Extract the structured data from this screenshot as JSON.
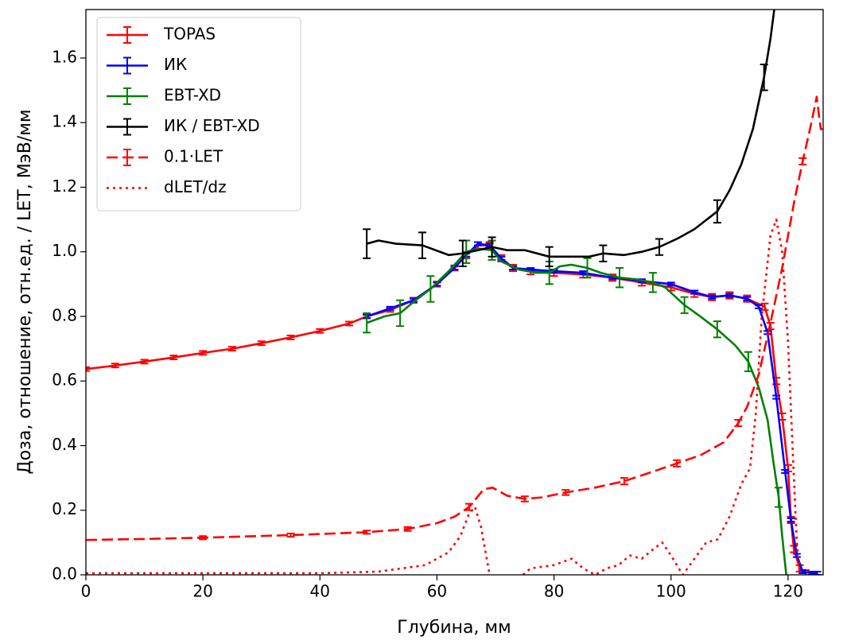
{
  "chart_data": {
    "type": "line",
    "xlabel": "Глубина, мм",
    "ylabel": "Доза, отношение, отн.ед. / LET, МэВ/мм",
    "xlim": [
      0,
      126
    ],
    "ylim": [
      0,
      1.75
    ],
    "xticks": [
      0,
      20,
      40,
      60,
      80,
      100,
      120
    ],
    "yticks": [
      {
        "value": 0,
        "label": "0.0"
      },
      0.2,
      0.4,
      0.6,
      0.8,
      {
        "value": 1,
        "label": "1.0"
      },
      1.2,
      1.4,
      1.6
    ],
    "legend": "upper left",
    "series": [
      {
        "name": "TOPAS",
        "color": "#ff0000",
        "style": "solid",
        "x": [
          0,
          5,
          10,
          15,
          20,
          25,
          30,
          35,
          40,
          45,
          48,
          52,
          56,
          60,
          63,
          65,
          67,
          69,
          71,
          73,
          76,
          80,
          85,
          90,
          95,
          100,
          104,
          107,
          110,
          113,
          116,
          117,
          118,
          119,
          120,
          120.5,
          121,
          122,
          123
        ],
        "values": [
          0.637,
          0.648,
          0.66,
          0.673,
          0.687,
          0.7,
          0.717,
          0.735,
          0.755,
          0.778,
          0.8,
          0.82,
          0.85,
          0.9,
          0.95,
          0.99,
          1.02,
          1.02,
          0.98,
          0.95,
          0.94,
          0.935,
          0.93,
          0.92,
          0.905,
          0.89,
          0.87,
          0.86,
          0.865,
          0.855,
          0.83,
          0.77,
          0.6,
          0.49,
          0.33,
          0.17,
          0.08,
          0.02,
          0.005
        ],
        "errors": [
          0.006,
          0.006,
          0.006,
          0.006,
          0.006,
          0.006,
          0.006,
          0.006,
          0.006,
          0.006,
          0.006,
          0.006,
          0.008,
          0.008,
          0.008,
          0.01,
          0.01,
          0.01,
          0.01,
          0.01,
          0.01,
          0.01,
          0.01,
          0.01,
          0.01,
          0.01,
          0.01,
          0.01,
          0.01,
          0.01,
          0.01,
          0.01,
          0.01,
          0.01,
          0.01,
          0.01,
          0.01,
          0.01,
          0.01
        ]
      },
      {
        "name": "ИК",
        "color": "#0000ff",
        "style": "solid",
        "x": [
          48,
          52,
          56,
          60,
          63,
          65,
          67,
          69,
          71,
          73,
          76,
          80,
          85,
          90,
          95,
          100,
          104,
          107,
          110,
          113,
          115,
          116.5,
          118,
          119.5,
          120.5,
          121.5,
          122.5,
          124,
          125
        ],
        "values": [
          0.8,
          0.825,
          0.85,
          0.9,
          0.95,
          0.99,
          1.025,
          1.02,
          0.98,
          0.95,
          0.945,
          0.94,
          0.935,
          0.92,
          0.91,
          0.9,
          0.875,
          0.86,
          0.865,
          0.855,
          0.83,
          0.75,
          0.55,
          0.32,
          0.17,
          0.06,
          0.01,
          0.005,
          0.005
        ],
        "errors": [
          0.005,
          0.005,
          0.005,
          0.005,
          0.005,
          0.005,
          0.005,
          0.005,
          0.005,
          0.005,
          0.005,
          0.005,
          0.005,
          0.005,
          0.005,
          0.005,
          0.005,
          0.005,
          0.005,
          0.005,
          0.005,
          0.005,
          0.005,
          0.005,
          0.005,
          0.005,
          0.005,
          0.005,
          0.005
        ]
      },
      {
        "name": "EBT-XD",
        "color": "#008000",
        "style": "solid",
        "x": [
          48,
          51,
          53.7,
          56,
          58.9,
          62,
          65,
          67,
          69.4,
          71,
          74,
          77,
          79.2,
          81,
          83,
          85.7,
          88,
          91.2,
          94,
          96.9,
          99,
          102.3,
          105,
          107.9,
          111,
          113.2,
          115,
          116.5,
          117.5,
          118.4,
          119,
          119.7
        ],
        "values": [
          0.78,
          0.8,
          0.81,
          0.845,
          0.885,
          0.94,
          1.0,
          1.01,
          1.005,
          0.97,
          0.945,
          0.935,
          0.935,
          0.955,
          0.96,
          0.95,
          0.935,
          0.92,
          0.915,
          0.905,
          0.89,
          0.835,
          0.8,
          0.76,
          0.71,
          0.66,
          0.58,
          0.48,
          0.35,
          0.24,
          0.12,
          0.0
        ],
        "errors": [
          0.03,
          null,
          0.04,
          null,
          0.04,
          null,
          0.035,
          null,
          0.03,
          null,
          null,
          null,
          0.035,
          null,
          null,
          0.03,
          null,
          0.03,
          null,
          0.03,
          null,
          0.025,
          null,
          0.025,
          null,
          0.03,
          null,
          null,
          null,
          0.03,
          null,
          null
        ]
      },
      {
        "name": "ИК / EBT-XD",
        "color": "#000000",
        "style": "solid",
        "x": [
          48,
          50,
          53,
          57.5,
          62,
          64.4,
          67,
          69.4,
          72,
          75,
          79.2,
          82,
          86,
          88.4,
          92,
          95,
          98,
          101,
          104,
          107.9,
          110,
          112,
          114,
          115.9,
          117,
          118
        ],
        "values": [
          1.025,
          1.035,
          1.025,
          1.02,
          0.99,
          0.995,
          1.005,
          1.015,
          1.005,
          1.005,
          0.985,
          0.985,
          0.985,
          0.995,
          0.99,
          1.0,
          1.015,
          1.04,
          1.07,
          1.125,
          1.19,
          1.27,
          1.38,
          1.54,
          1.66,
          1.8
        ],
        "errors": [
          0.045,
          null,
          null,
          0.04,
          null,
          0.04,
          null,
          0.03,
          null,
          null,
          0.03,
          null,
          null,
          0.025,
          null,
          null,
          0.025,
          null,
          null,
          0.035,
          null,
          null,
          null,
          0.04,
          null,
          null
        ]
      },
      {
        "name": "0.1·LET",
        "color": "#ff0000",
        "style": "dashed",
        "x": [
          0,
          10,
          20,
          35,
          48,
          55,
          60,
          63,
          65.5,
          68,
          69.5,
          72,
          75,
          78,
          82,
          87,
          92,
          97,
          101,
          105,
          109,
          111.5,
          113,
          115,
          117,
          119,
          121,
          122.5,
          124,
          124.9,
          125.3,
          125.6,
          125.9
        ],
        "values": [
          0.108,
          0.111,
          0.115,
          0.123,
          0.132,
          0.142,
          0.16,
          0.18,
          0.21,
          0.265,
          0.27,
          0.245,
          0.235,
          0.24,
          0.255,
          0.27,
          0.29,
          0.32,
          0.345,
          0.37,
          0.41,
          0.47,
          0.52,
          0.62,
          0.78,
          0.95,
          1.15,
          1.28,
          1.4,
          1.48,
          1.42,
          1.38,
          1.38
        ],
        "errors": [
          null,
          null,
          0.005,
          0.005,
          0.005,
          0.006,
          null,
          null,
          0.01,
          null,
          null,
          null,
          0.008,
          null,
          0.008,
          null,
          0.01,
          null,
          0.01,
          null,
          null,
          0.01,
          null,
          null,
          null,
          null,
          null,
          0.01,
          null,
          null,
          null,
          null,
          null
        ]
      },
      {
        "name": "dLET/dz",
        "color": "#ff0000",
        "style": "dotted",
        "x": [
          0,
          40,
          50,
          58,
          62,
          64,
          65.5,
          66.5,
          67.5,
          68.5,
          69,
          72,
          74.7,
          76,
          80,
          83,
          85,
          87,
          89,
          91,
          93,
          95,
          97,
          98.5,
          100,
          102,
          104,
          106,
          108,
          110,
          112,
          113.5,
          114.5,
          115.5,
          117,
          118,
          119,
          120,
          121,
          121.5,
          122
        ],
        "values": [
          0.005,
          0.005,
          0.01,
          0.03,
          0.07,
          0.12,
          0.19,
          0.21,
          0.15,
          0.05,
          0.0,
          null,
          0.0,
          0.02,
          0.03,
          0.05,
          0.02,
          0.0,
          0.02,
          0.03,
          0.06,
          0.05,
          0.08,
          0.1,
          0.06,
          0.0,
          0.05,
          0.1,
          0.11,
          0.18,
          0.28,
          0.33,
          0.5,
          0.8,
          1.05,
          1.1,
          1.0,
          0.72,
          0.3,
          0.1,
          0.0
        ]
      }
    ]
  }
}
